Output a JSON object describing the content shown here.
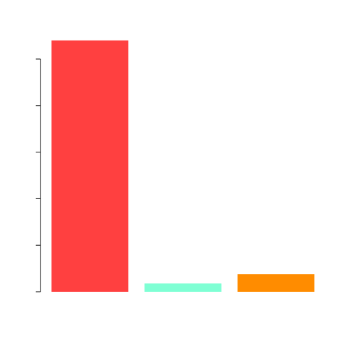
{
  "chart_data": {
    "type": "bar",
    "categories": [
      "",
      "",
      ""
    ],
    "values": [
      5.4,
      0.18,
      0.38
    ],
    "colors": [
      "#ff4040",
      "#7fffd4",
      "#ff8c00"
    ],
    "title": "",
    "xlabel": "",
    "ylabel": "",
    "ylim": [
      0,
      5.4
    ],
    "y_ticks": [
      0,
      1,
      2,
      3,
      4,
      5
    ],
    "tick_labels_shown": false,
    "grid": false,
    "legend": "none"
  }
}
